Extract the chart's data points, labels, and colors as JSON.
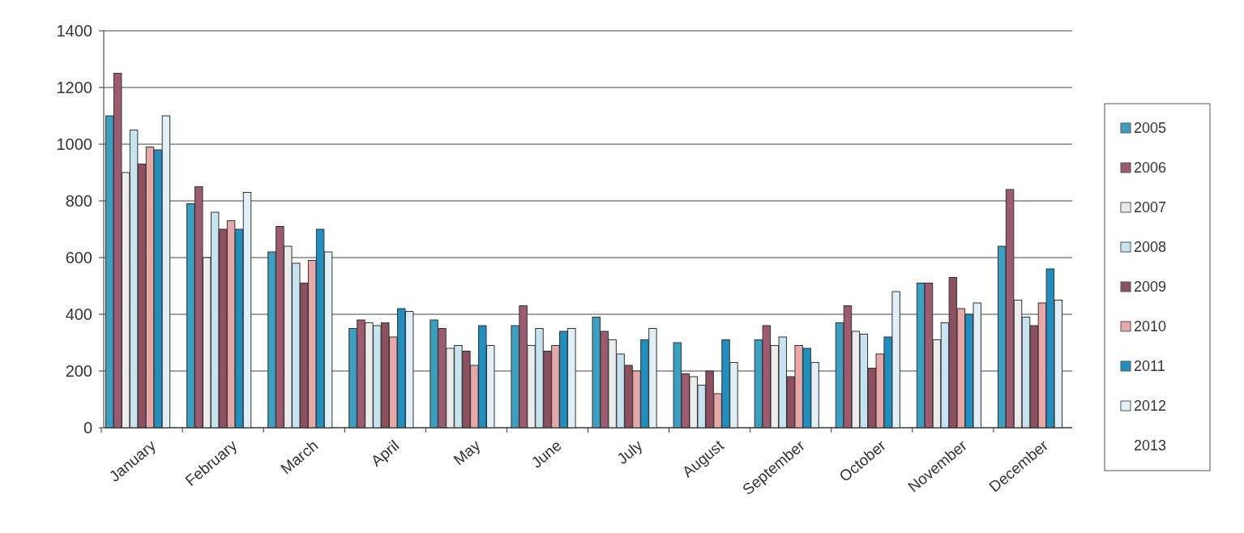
{
  "chart_data": {
    "type": "bar",
    "categories": [
      "January",
      "February",
      "March",
      "April",
      "May",
      "June",
      "July",
      "August",
      "September",
      "October",
      "November",
      "December"
    ],
    "series": [
      {
        "name": "2005",
        "color": "#3a9fc0",
        "values": [
          1100,
          790,
          620,
          350,
          380,
          360,
          390,
          300,
          310,
          370,
          510,
          640
        ]
      },
      {
        "name": "2006",
        "color": "#9e5a6e",
        "values": [
          1250,
          850,
          710,
          380,
          350,
          430,
          340,
          190,
          360,
          430,
          510,
          840
        ]
      },
      {
        "name": "2007",
        "color": "#ececec",
        "values": [
          900,
          600,
          640,
          370,
          280,
          290,
          310,
          180,
          290,
          340,
          310,
          450
        ]
      },
      {
        "name": "2008",
        "color": "#c6e4ef",
        "values": [
          1050,
          760,
          580,
          360,
          290,
          350,
          260,
          150,
          320,
          330,
          370,
          390
        ]
      },
      {
        "name": "2009",
        "color": "#8c5060",
        "values": [
          930,
          700,
          510,
          370,
          270,
          270,
          220,
          200,
          180,
          210,
          530,
          360
        ]
      },
      {
        "name": "2010",
        "color": "#e8a8a8",
        "values": [
          990,
          730,
          590,
          320,
          220,
          290,
          200,
          120,
          290,
          260,
          420,
          440
        ]
      },
      {
        "name": "2011",
        "color": "#1e8fbf",
        "values": [
          980,
          700,
          700,
          420,
          360,
          340,
          310,
          310,
          280,
          320,
          400,
          560
        ]
      },
      {
        "name": "2012",
        "color": "#e0f0f6",
        "values": [
          1100,
          830,
          620,
          410,
          290,
          350,
          350,
          230,
          230,
          480,
          440,
          450
        ]
      },
      {
        "name": "2013",
        "values": [
          null,
          null,
          null,
          null,
          null,
          null,
          null,
          null,
          null,
          null,
          null,
          null
        ]
      }
    ],
    "ylim": [
      0,
      1400
    ],
    "yticks": [
      0,
      200,
      400,
      600,
      800,
      1000,
      1200,
      1400
    ],
    "grid": "y",
    "legend": "right"
  }
}
